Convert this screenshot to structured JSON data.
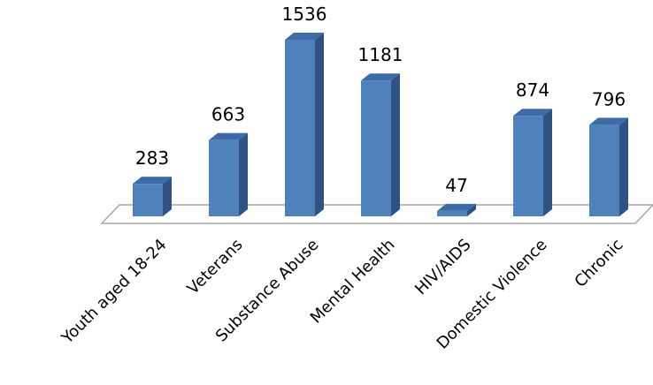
{
  "chart_data": {
    "type": "bar",
    "title": "",
    "xlabel": "",
    "ylabel": "",
    "categories": [
      "Youth aged 18-24",
      "Veterans",
      "Substance Abuse",
      "Mental Health",
      "HIV/AIDS",
      "Domestic Violence",
      "Chronic"
    ],
    "values": [
      283,
      663,
      1536,
      1181,
      47,
      874,
      796
    ],
    "data_labels": [
      "283",
      "663",
      "1536",
      "1181",
      "47",
      "874",
      "796"
    ],
    "grid": false,
    "legend": "none",
    "style": "3d-column",
    "colors": {
      "front": "#4F81BD",
      "side": "#2F5284",
      "top": "#3E6AA5",
      "floor_stroke": "#A6A6A6"
    }
  }
}
